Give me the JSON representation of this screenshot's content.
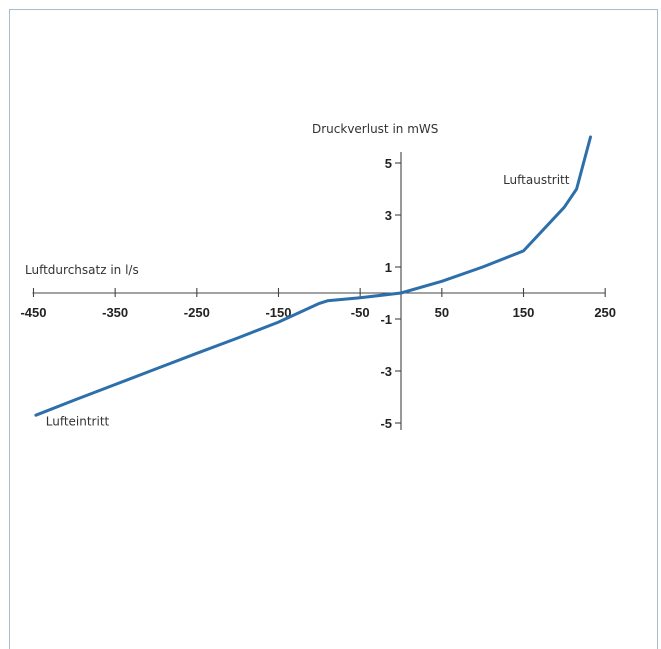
{
  "chart_data": {
    "type": "line",
    "xlabel": "Luftdurchsatz in l/s",
    "ylabel": "Druckverlust in mWS",
    "x_ticks": [
      -450,
      -350,
      -250,
      -150,
      -50,
      50,
      150,
      250
    ],
    "y_ticks": [
      5,
      3,
      1,
      -1,
      -3,
      -5
    ],
    "xlim": [
      -450,
      250
    ],
    "ylim": [
      -5,
      6
    ],
    "grid": false,
    "series": [
      {
        "color": "#2d6faa",
        "x": [
          -447,
          -400,
          -350,
          -300,
          -250,
          -200,
          -150,
          -100,
          -90,
          -50,
          0,
          50,
          100,
          150,
          200,
          215,
          232
        ],
        "y": [
          -4.7,
          -4.12,
          -3.52,
          -2.92,
          -2.32,
          -1.73,
          -1.12,
          -0.4,
          -0.3,
          -0.18,
          0,
          0.45,
          1.0,
          1.62,
          3.3,
          4.0,
          6.0
        ]
      }
    ],
    "annotations": [
      {
        "text": "Luftaustritt",
        "x": 125,
        "y": 4.2
      },
      {
        "text": "Lufteintritt",
        "x": -435,
        "y": -5.1
      }
    ]
  }
}
